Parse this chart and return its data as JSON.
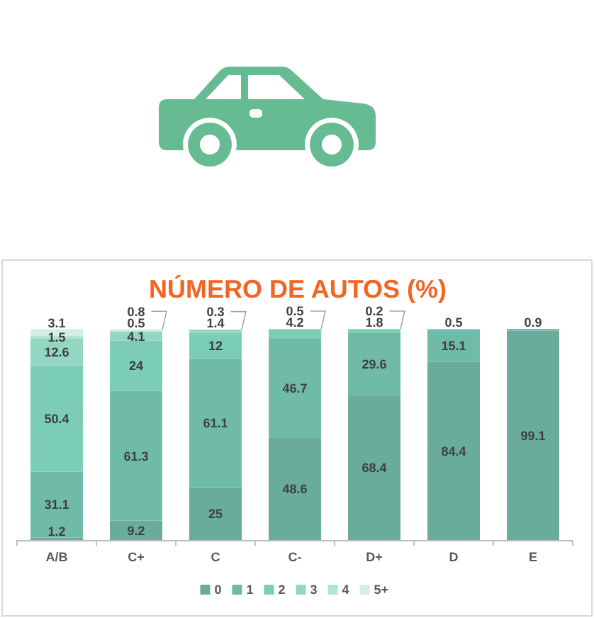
{
  "chart_data": {
    "type": "bar",
    "title": "NÚMERO DE AUTOS (%)",
    "categories": [
      "A/B",
      "C+",
      "C",
      "C-",
      "D+",
      "D",
      "E"
    ],
    "stacked": true,
    "data_labels": true,
    "legend": "bottom",
    "series": [
      {
        "name": "0",
        "color": "#69ac9b",
        "values": [
          1.2,
          9.2,
          25,
          48.6,
          68.4,
          84.4,
          99.1
        ]
      },
      {
        "name": "1",
        "color": "#70bba7",
        "values": [
          31.1,
          61.3,
          61.1,
          46.7,
          29.6,
          15.1,
          0.9
        ]
      },
      {
        "name": "2",
        "color": "#7bcdb5",
        "values": [
          50.4,
          24,
          12,
          4.2,
          1.8,
          0.5,
          null
        ]
      },
      {
        "name": "3",
        "color": "#93d6c1",
        "values": [
          12.6,
          4.1,
          1.4,
          0.5,
          0.2,
          null,
          null
        ]
      },
      {
        "name": "4",
        "color": "#b2e3d3",
        "values": [
          1.5,
          0.5,
          0.3,
          null,
          null,
          null,
          null
        ]
      },
      {
        "name": "5+",
        "color": "#d3efe5",
        "values": [
          3.1,
          0.8,
          null,
          null,
          null,
          null,
          null
        ]
      }
    ]
  }
}
